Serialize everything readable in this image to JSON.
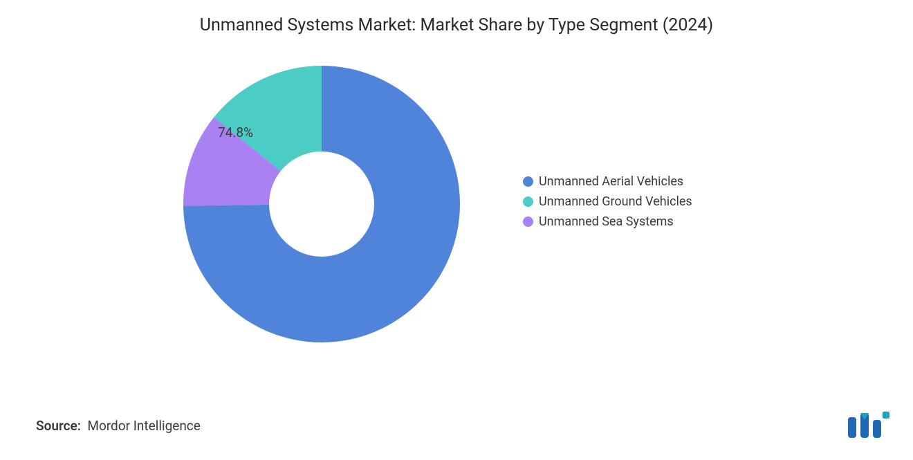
{
  "title": "Unmanned Systems Market: Market Share by Type Segment (2024)",
  "chart": {
    "type": "donut",
    "inner_radius_ratio": 0.38,
    "background_color": "#ffffff",
    "slices": [
      {
        "label": "Unmanned Aerial Vehicles",
        "value": 74.8,
        "color": "#5084db",
        "show_label": true,
        "label_text": "74.8%"
      },
      {
        "label": "Unmanned Sea Systems",
        "value": 11.0,
        "color": "#a981f2",
        "show_label": false,
        "label_text": ""
      },
      {
        "label": "Unmanned Ground Vehicles",
        "value": 14.2,
        "color": "#4bccc5",
        "show_label": false,
        "label_text": ""
      }
    ],
    "title_fontsize": 25,
    "label_fontsize": 19,
    "legend_fontsize": 18,
    "text_color": "#3a3a3a"
  },
  "legend": {
    "items": [
      {
        "label": "Unmanned Aerial Vehicles",
        "color": "#5084db"
      },
      {
        "label": "Unmanned Ground Vehicles",
        "color": "#4bccc5"
      },
      {
        "label": "Unmanned Sea Systems",
        "color": "#a981f2"
      }
    ]
  },
  "source": {
    "prefix": "Source:",
    "text": "Mordor Intelligence"
  },
  "logo": {
    "bar_color": "#2068b2",
    "accent_color": "#1fa0c4"
  }
}
